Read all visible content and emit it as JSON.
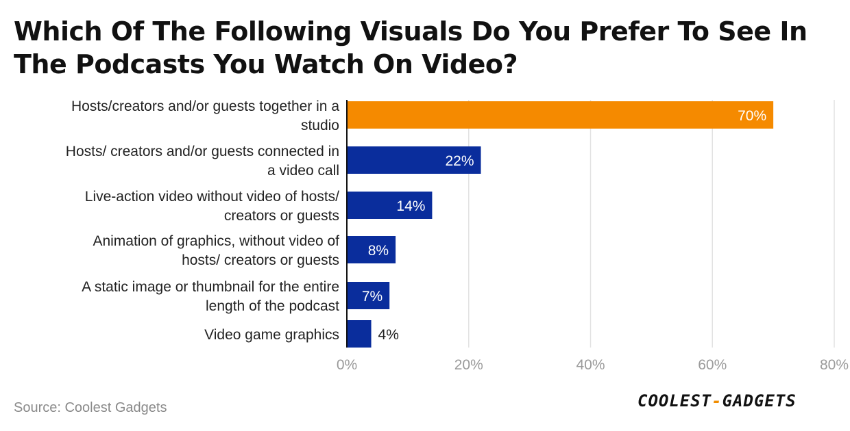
{
  "title": "Which Of The Following Visuals Do You Prefer To See In The Podcasts You Watch On Video?",
  "source": "Source: Coolest Gadgets",
  "logo": {
    "left": "COOLEST",
    "sep": "-",
    "right": "GADGETS"
  },
  "colors": {
    "highlight": "#f58a00",
    "bar": "#0a2d9c",
    "grid": "#e2e2e2",
    "axis": "#111111",
    "tick": "#9a9a9a"
  },
  "chart_data": {
    "type": "bar",
    "orientation": "horizontal",
    "categories": [
      [
        "Hosts/creators and/or guests together in a",
        "studio"
      ],
      [
        "Hosts/ creators and/or guests connected in",
        "a video call"
      ],
      [
        "Live-action video without video of hosts/",
        "creators or guests"
      ],
      [
        "Animation of graphics, without video of",
        "hosts/ creators or guests"
      ],
      [
        "A static image or thumbnail for the entire",
        "length of the podcast"
      ],
      [
        "Video game graphics"
      ]
    ],
    "values": [
      70,
      22,
      14,
      8,
      7,
      4
    ],
    "data_labels": [
      "70%",
      "22%",
      "14%",
      "8%",
      "7%",
      "4%"
    ],
    "highlight_index": 0,
    "xlim": [
      0,
      80
    ],
    "xticks": [
      "0%",
      "20%",
      "40%",
      "60%",
      "80%"
    ],
    "grid": true
  }
}
